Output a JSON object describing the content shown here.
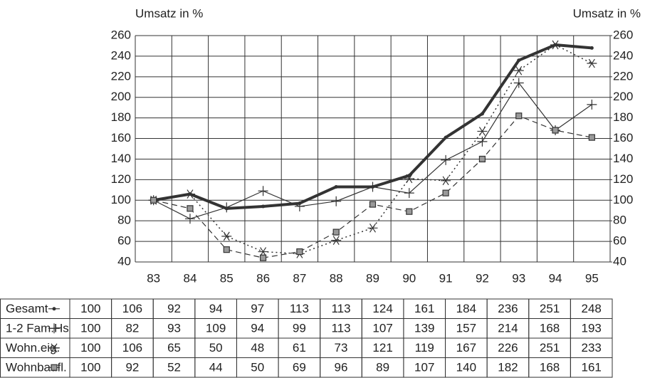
{
  "chart_data": {
    "type": "line",
    "y_label": "Umsatz in %",
    "y2_label": "Umsatz in %",
    "categories": [
      "83",
      "84",
      "85",
      "86",
      "87",
      "88",
      "89",
      "90",
      "91",
      "92",
      "93",
      "94",
      "95"
    ],
    "ylim": [
      40,
      260
    ],
    "yticks": [
      40,
      60,
      80,
      100,
      120,
      140,
      160,
      180,
      200,
      220,
      240,
      260
    ],
    "y2lim": [
      40,
      260
    ],
    "y2ticks": [
      40,
      60,
      80,
      100,
      120,
      140,
      160,
      180,
      200,
      220,
      240,
      260
    ],
    "grid": true,
    "series": [
      {
        "name": "Gesamt",
        "color": "#333333",
        "marker": "dot",
        "line_style": "solid",
        "line_width": 4,
        "values": [
          100,
          106,
          92,
          94,
          97,
          113,
          113,
          124,
          161,
          184,
          236,
          251,
          248
        ]
      },
      {
        "name": "1-2 Fam.Hs",
        "color": "#333333",
        "marker": "plus",
        "line_style": "solid",
        "line_width": 1.2,
        "values": [
          100,
          82,
          93,
          109,
          94,
          99,
          113,
          107,
          139,
          157,
          214,
          168,
          193
        ]
      },
      {
        "name": "Wohn.eig.",
        "color": "#333333",
        "marker": "star",
        "line_style": "dotted",
        "line_width": 1.5,
        "values": [
          100,
          106,
          65,
          50,
          48,
          61,
          73,
          121,
          119,
          167,
          226,
          251,
          233
        ]
      },
      {
        "name": "Wohnbaufl.",
        "color": "#333333",
        "marker": "square",
        "line_style": "dashed",
        "line_width": 1.2,
        "values": [
          100,
          92,
          52,
          44,
          50,
          69,
          96,
          89,
          107,
          140,
          182,
          168,
          161
        ]
      }
    ]
  }
}
